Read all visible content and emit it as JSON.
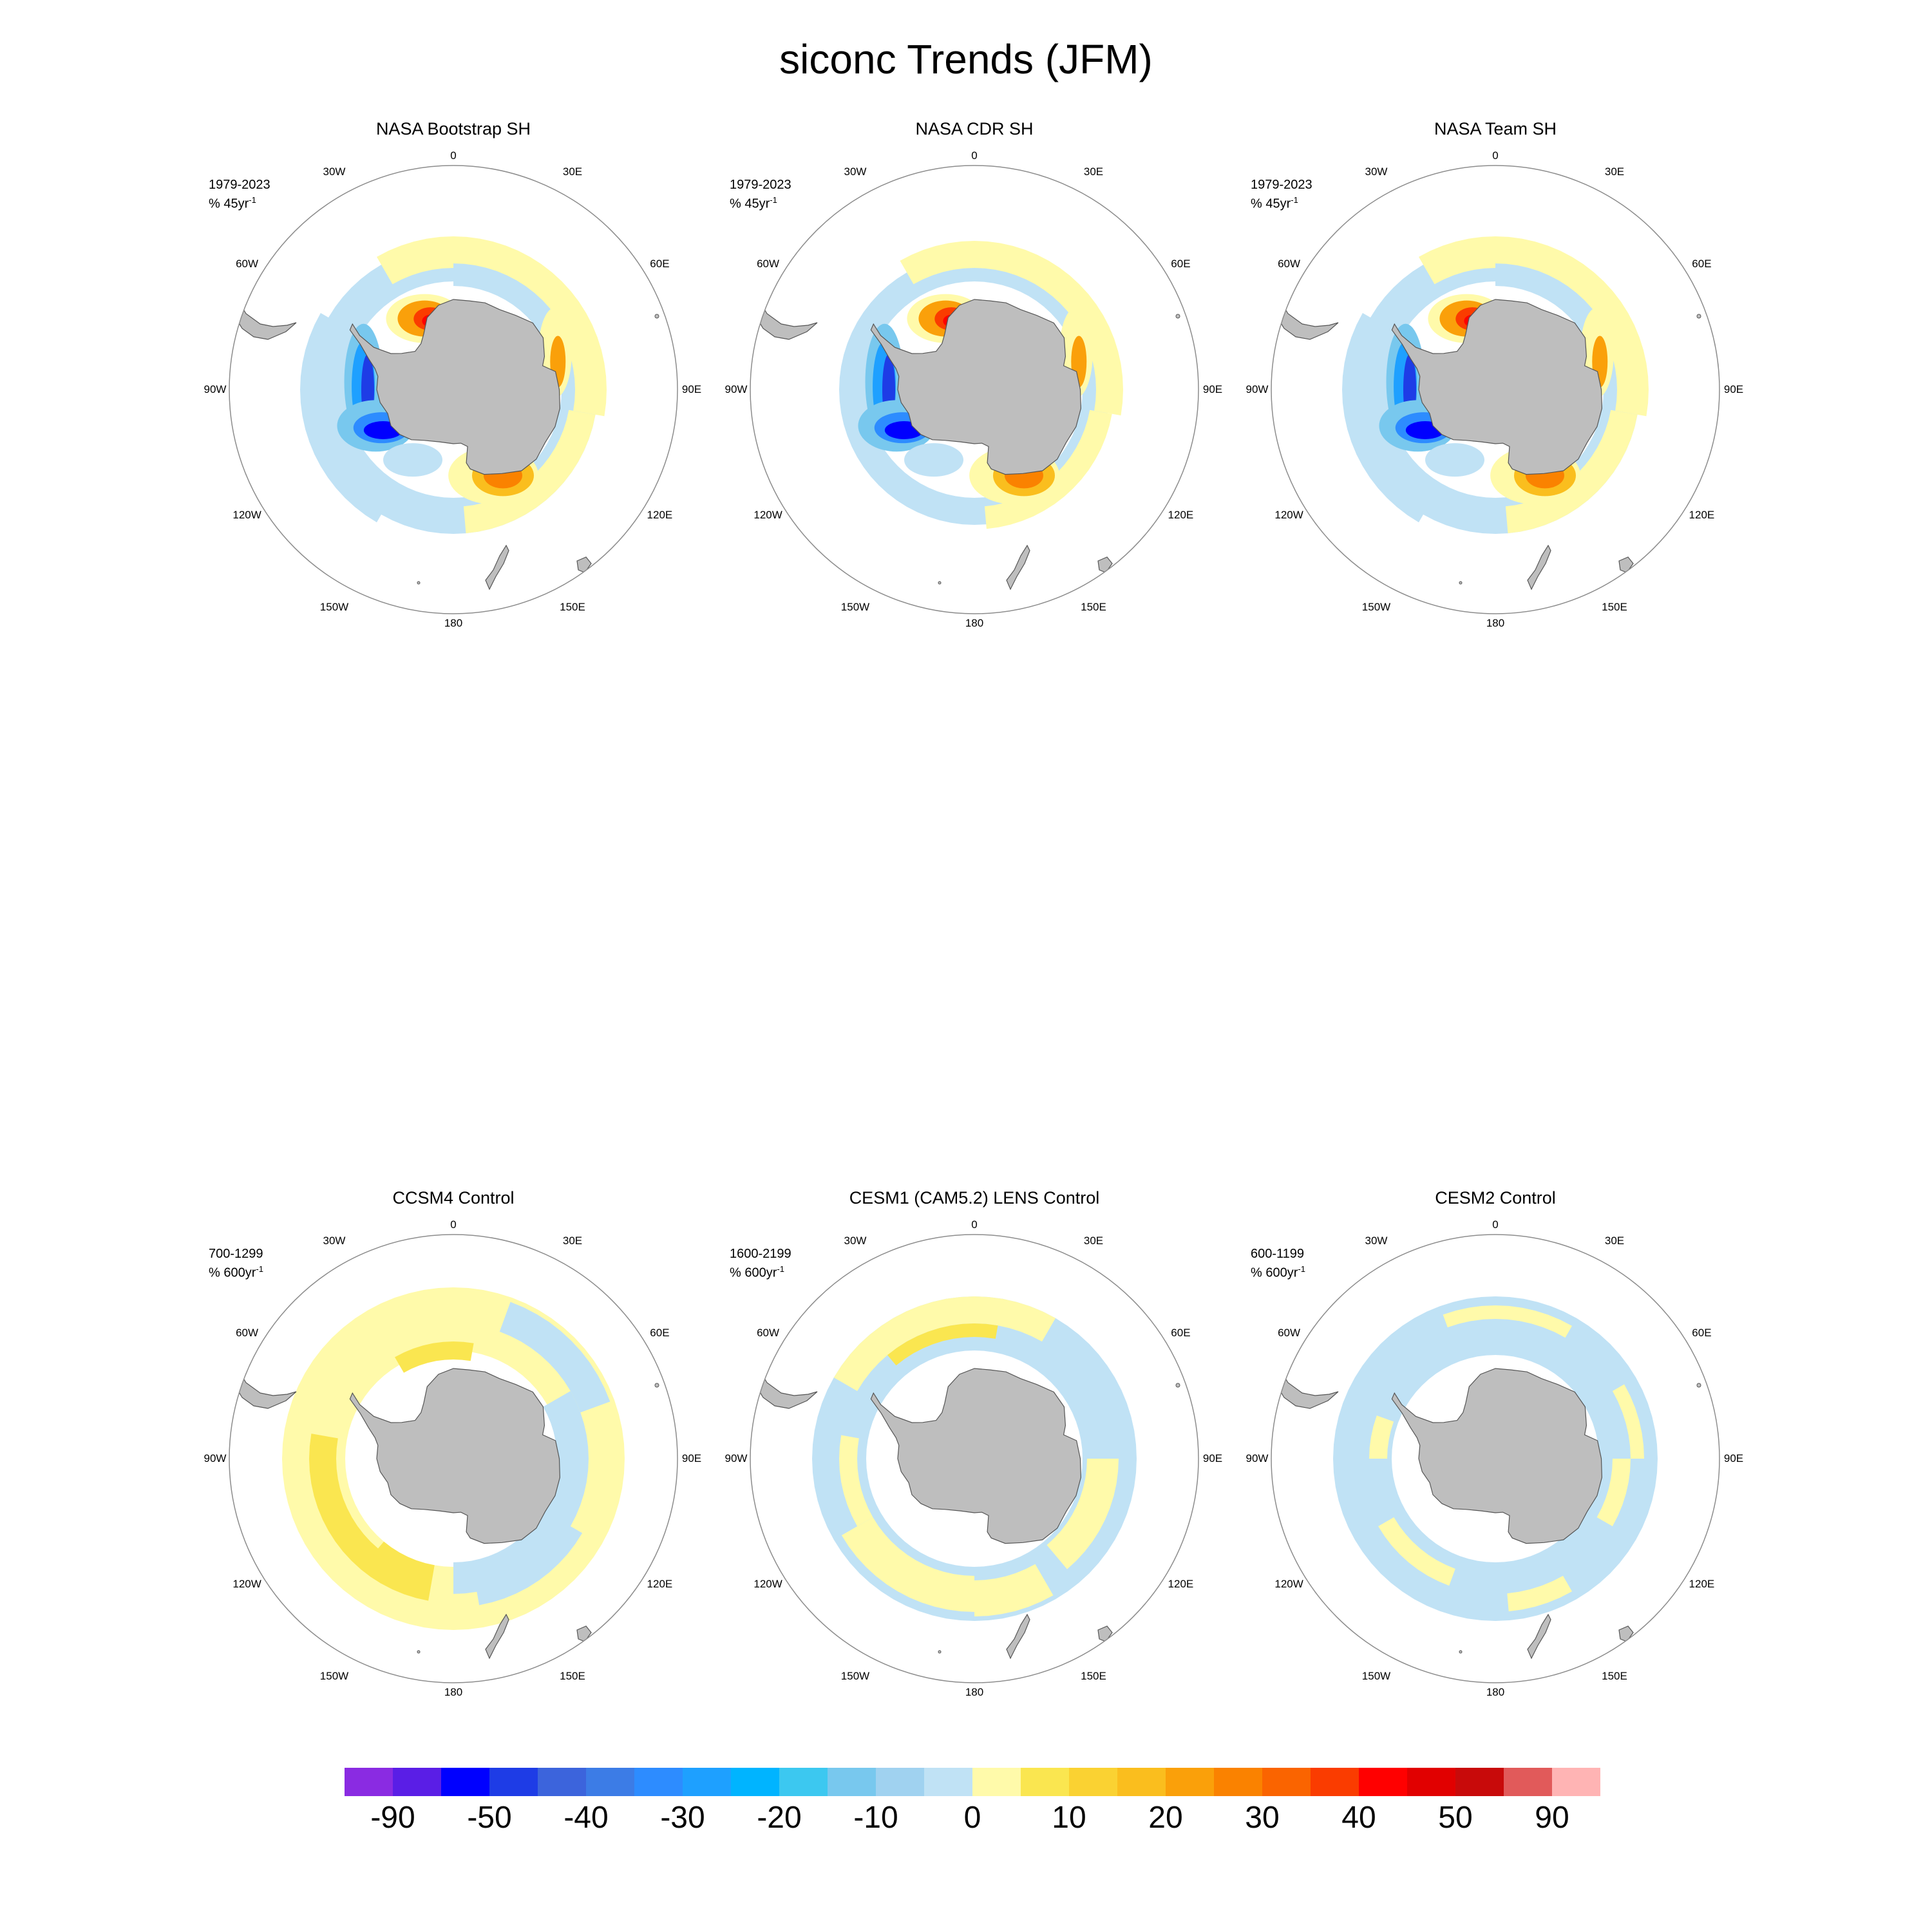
{
  "title": "siconc Trends (JFM)",
  "colors": {
    "land": "#bebebe",
    "coast": "#555555",
    "rim": "#8c8c8c"
  },
  "panels": [
    {
      "id": "bootstrap",
      "title": "NASA Bootstrap SH",
      "period": "1979-2023",
      "units_prefix": "% 45yr",
      "units_sup": "-1",
      "pattern": "obs"
    },
    {
      "id": "cdr",
      "title": "NASA CDR SH",
      "period": "1979-2023",
      "units_prefix": "% 45yr",
      "units_sup": "-1",
      "pattern": "obs2"
    },
    {
      "id": "team",
      "title": "NASA Team SH",
      "period": "1979-2023",
      "units_prefix": "% 45yr",
      "units_sup": "-1",
      "pattern": "obs"
    },
    {
      "id": "ccsm4",
      "title": "CCSM4 Control",
      "period": "700-1299",
      "units_prefix": "% 600yr",
      "units_sup": "-1",
      "pattern": "ccsm4"
    },
    {
      "id": "cesm1",
      "title": "CESM1 (CAM5.2) LENS Control",
      "period": "1600-2199",
      "units_prefix": "% 600yr",
      "units_sup": "-1",
      "pattern": "cesm1"
    },
    {
      "id": "cesm2",
      "title": "CESM2 Control",
      "period": "600-1199",
      "units_prefix": "% 600yr",
      "units_sup": "-1",
      "pattern": "cesm2"
    }
  ],
  "lon_labels": [
    "0",
    "30E",
    "60E",
    "90E",
    "120E",
    "150E",
    "180",
    "150W",
    "120W",
    "90W",
    "60W",
    "30W"
  ],
  "colorbar": {
    "colors": [
      "#8a2be2",
      "#5a1ee6",
      "#0000ff",
      "#1e3ce6",
      "#3c64dc",
      "#3c7ce6",
      "#2d8cff",
      "#1ea0ff",
      "#00b4ff",
      "#3cc8f0",
      "#78c8ee",
      "#a0d2f0",
      "#c0e2f5",
      "#fffaaa",
      "#fae650",
      "#fad232",
      "#fabe1e",
      "#faa00a",
      "#fa8200",
      "#fa6400",
      "#fa3c00",
      "#ff0000",
      "#e10000",
      "#c80a0a",
      "#e15a5a",
      "#ffb4b4"
    ],
    "labels": [
      "-90",
      "-50",
      "-40",
      "-30",
      "-20",
      "-10",
      "0",
      "10",
      "20",
      "30",
      "40",
      "50",
      "90"
    ]
  }
}
